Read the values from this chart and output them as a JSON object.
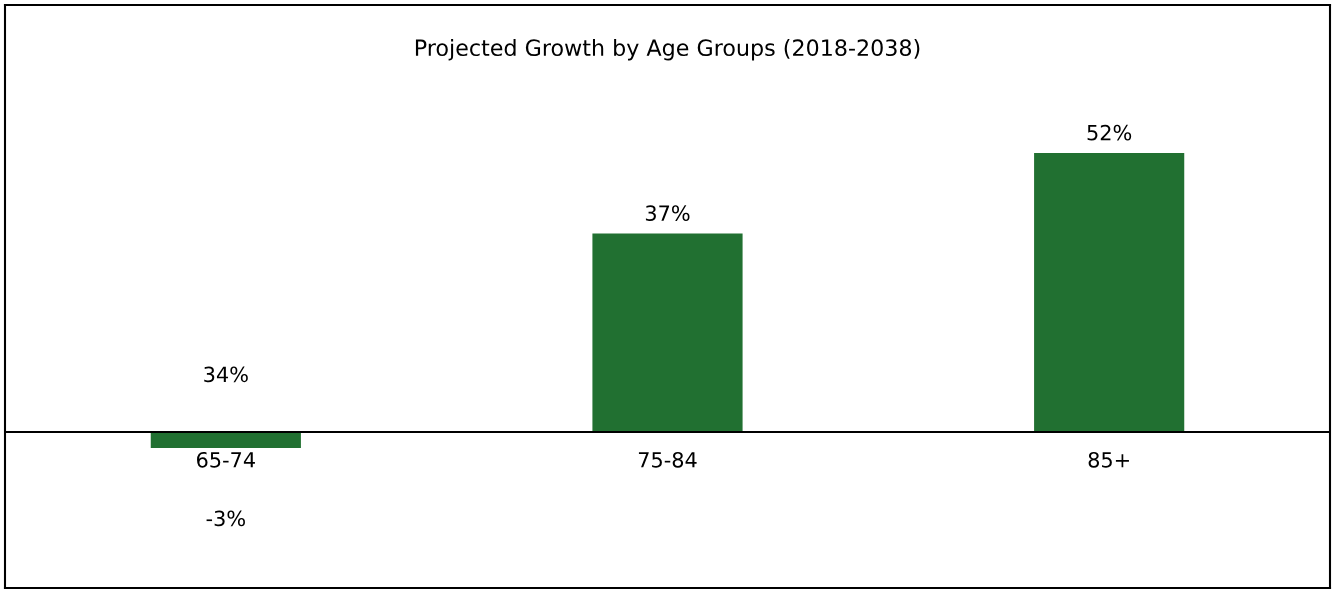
{
  "chart_data": {
    "type": "bar",
    "title": "Projected Growth by Age Groups (2018-2038)",
    "categories": [
      "65-74",
      "75-84",
      "85+"
    ],
    "values": [
      -3,
      37,
      52
    ],
    "value_labels": [
      "-3%",
      "37%",
      "52%"
    ],
    "color": "#217031",
    "annotations": [
      "34%"
    ]
  }
}
